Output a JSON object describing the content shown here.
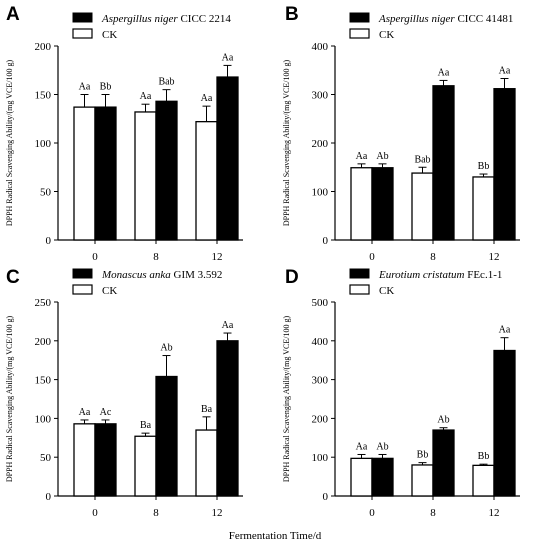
{
  "figure": {
    "xlabel": "Fermentation Time/d"
  },
  "chart_data": [
    {
      "panel": "A",
      "type": "bar",
      "categories": [
        "0",
        "8",
        "12"
      ],
      "ylabel": "DPPH Radical Scavenging Ability/(mg VCE/100 g)",
      "ylim": [
        0,
        200
      ],
      "yticks": [
        0,
        50,
        100,
        150,
        200
      ],
      "legend": {
        "placement": "top",
        "strain_italic": "Aspergillus niger",
        "strain_code": " CICC 2214",
        "control": "CK"
      },
      "series": [
        {
          "name": "CK",
          "fill": "#ffffff",
          "values": [
            137,
            132,
            122
          ],
          "errors": [
            13,
            8,
            16
          ],
          "labels": [
            "Aa",
            "Aa",
            "Aa"
          ]
        },
        {
          "name": "Aspergillus niger CICC 2214",
          "fill": "#000000",
          "values": [
            137,
            143,
            168
          ],
          "errors": [
            13,
            12,
            12
          ],
          "labels": [
            "Bb",
            "Bab",
            "Aa"
          ]
        }
      ]
    },
    {
      "panel": "B",
      "type": "bar",
      "categories": [
        "0",
        "8",
        "12"
      ],
      "ylabel": "DPPH Radical Scavenging Ability/(mg VCE/100 g)",
      "ylim": [
        0,
        400
      ],
      "yticks": [
        0,
        100,
        200,
        300,
        400
      ],
      "legend": {
        "placement": "top",
        "strain_italic": "Aspergillus niger",
        "strain_code": " CICC 41481",
        "control": "CK"
      },
      "series": [
        {
          "name": "CK",
          "fill": "#ffffff",
          "values": [
            149,
            138,
            130
          ],
          "errors": [
            8,
            12,
            6
          ],
          "labels": [
            "Aa",
            "Bab",
            "Bb"
          ]
        },
        {
          "name": "Aspergillus niger CICC 41481",
          "fill": "#000000",
          "values": [
            149,
            318,
            312
          ],
          "errors": [
            8,
            11,
            21
          ],
          "labels": [
            "Ab",
            "Aa",
            "Aa"
          ]
        }
      ]
    },
    {
      "panel": "C",
      "type": "bar",
      "categories": [
        "0",
        "8",
        "12"
      ],
      "ylabel": "DPPH Radical Scavenging Ability/(mg VCE/100 g)",
      "ylim": [
        0,
        250
      ],
      "yticks": [
        0,
        50,
        100,
        150,
        200,
        250
      ],
      "legend": {
        "placement": "top",
        "strain_italic": "Monascus anka",
        "strain_code": " GIM 3.592",
        "control": "CK"
      },
      "series": [
        {
          "name": "CK",
          "fill": "#ffffff",
          "values": [
            93,
            77,
            85
          ],
          "errors": [
            5,
            4,
            17
          ],
          "labels": [
            "Aa",
            "Ba",
            "Ba"
          ]
        },
        {
          "name": "Monascus anka GIM 3.592",
          "fill": "#000000",
          "values": [
            93,
            154,
            200
          ],
          "errors": [
            5,
            27,
            10
          ],
          "labels": [
            "Ac",
            "Ab",
            "Aa"
          ]
        }
      ]
    },
    {
      "panel": "D",
      "type": "bar",
      "categories": [
        "0",
        "8",
        "12"
      ],
      "ylabel": "DPPH Radical Scavenging Ability/(mg VCE/100 g)",
      "ylim": [
        0,
        500
      ],
      "yticks": [
        0,
        100,
        200,
        300,
        400,
        500
      ],
      "legend": {
        "placement": "top",
        "strain_italic": "Eurotium cristatum",
        "strain_code": " FEc.1-1",
        "control": "CK"
      },
      "series": [
        {
          "name": "CK",
          "fill": "#ffffff",
          "values": [
            97,
            80,
            79
          ],
          "errors": [
            10,
            6,
            3
          ],
          "labels": [
            "Aa",
            "Bb",
            "Bb"
          ]
        },
        {
          "name": "Eurotium cristatum FEc.1-1",
          "fill": "#000000",
          "values": [
            97,
            170,
            375
          ],
          "errors": [
            10,
            6,
            33
          ],
          "labels": [
            "Ab",
            "Ab",
            "Aa"
          ]
        }
      ]
    }
  ]
}
